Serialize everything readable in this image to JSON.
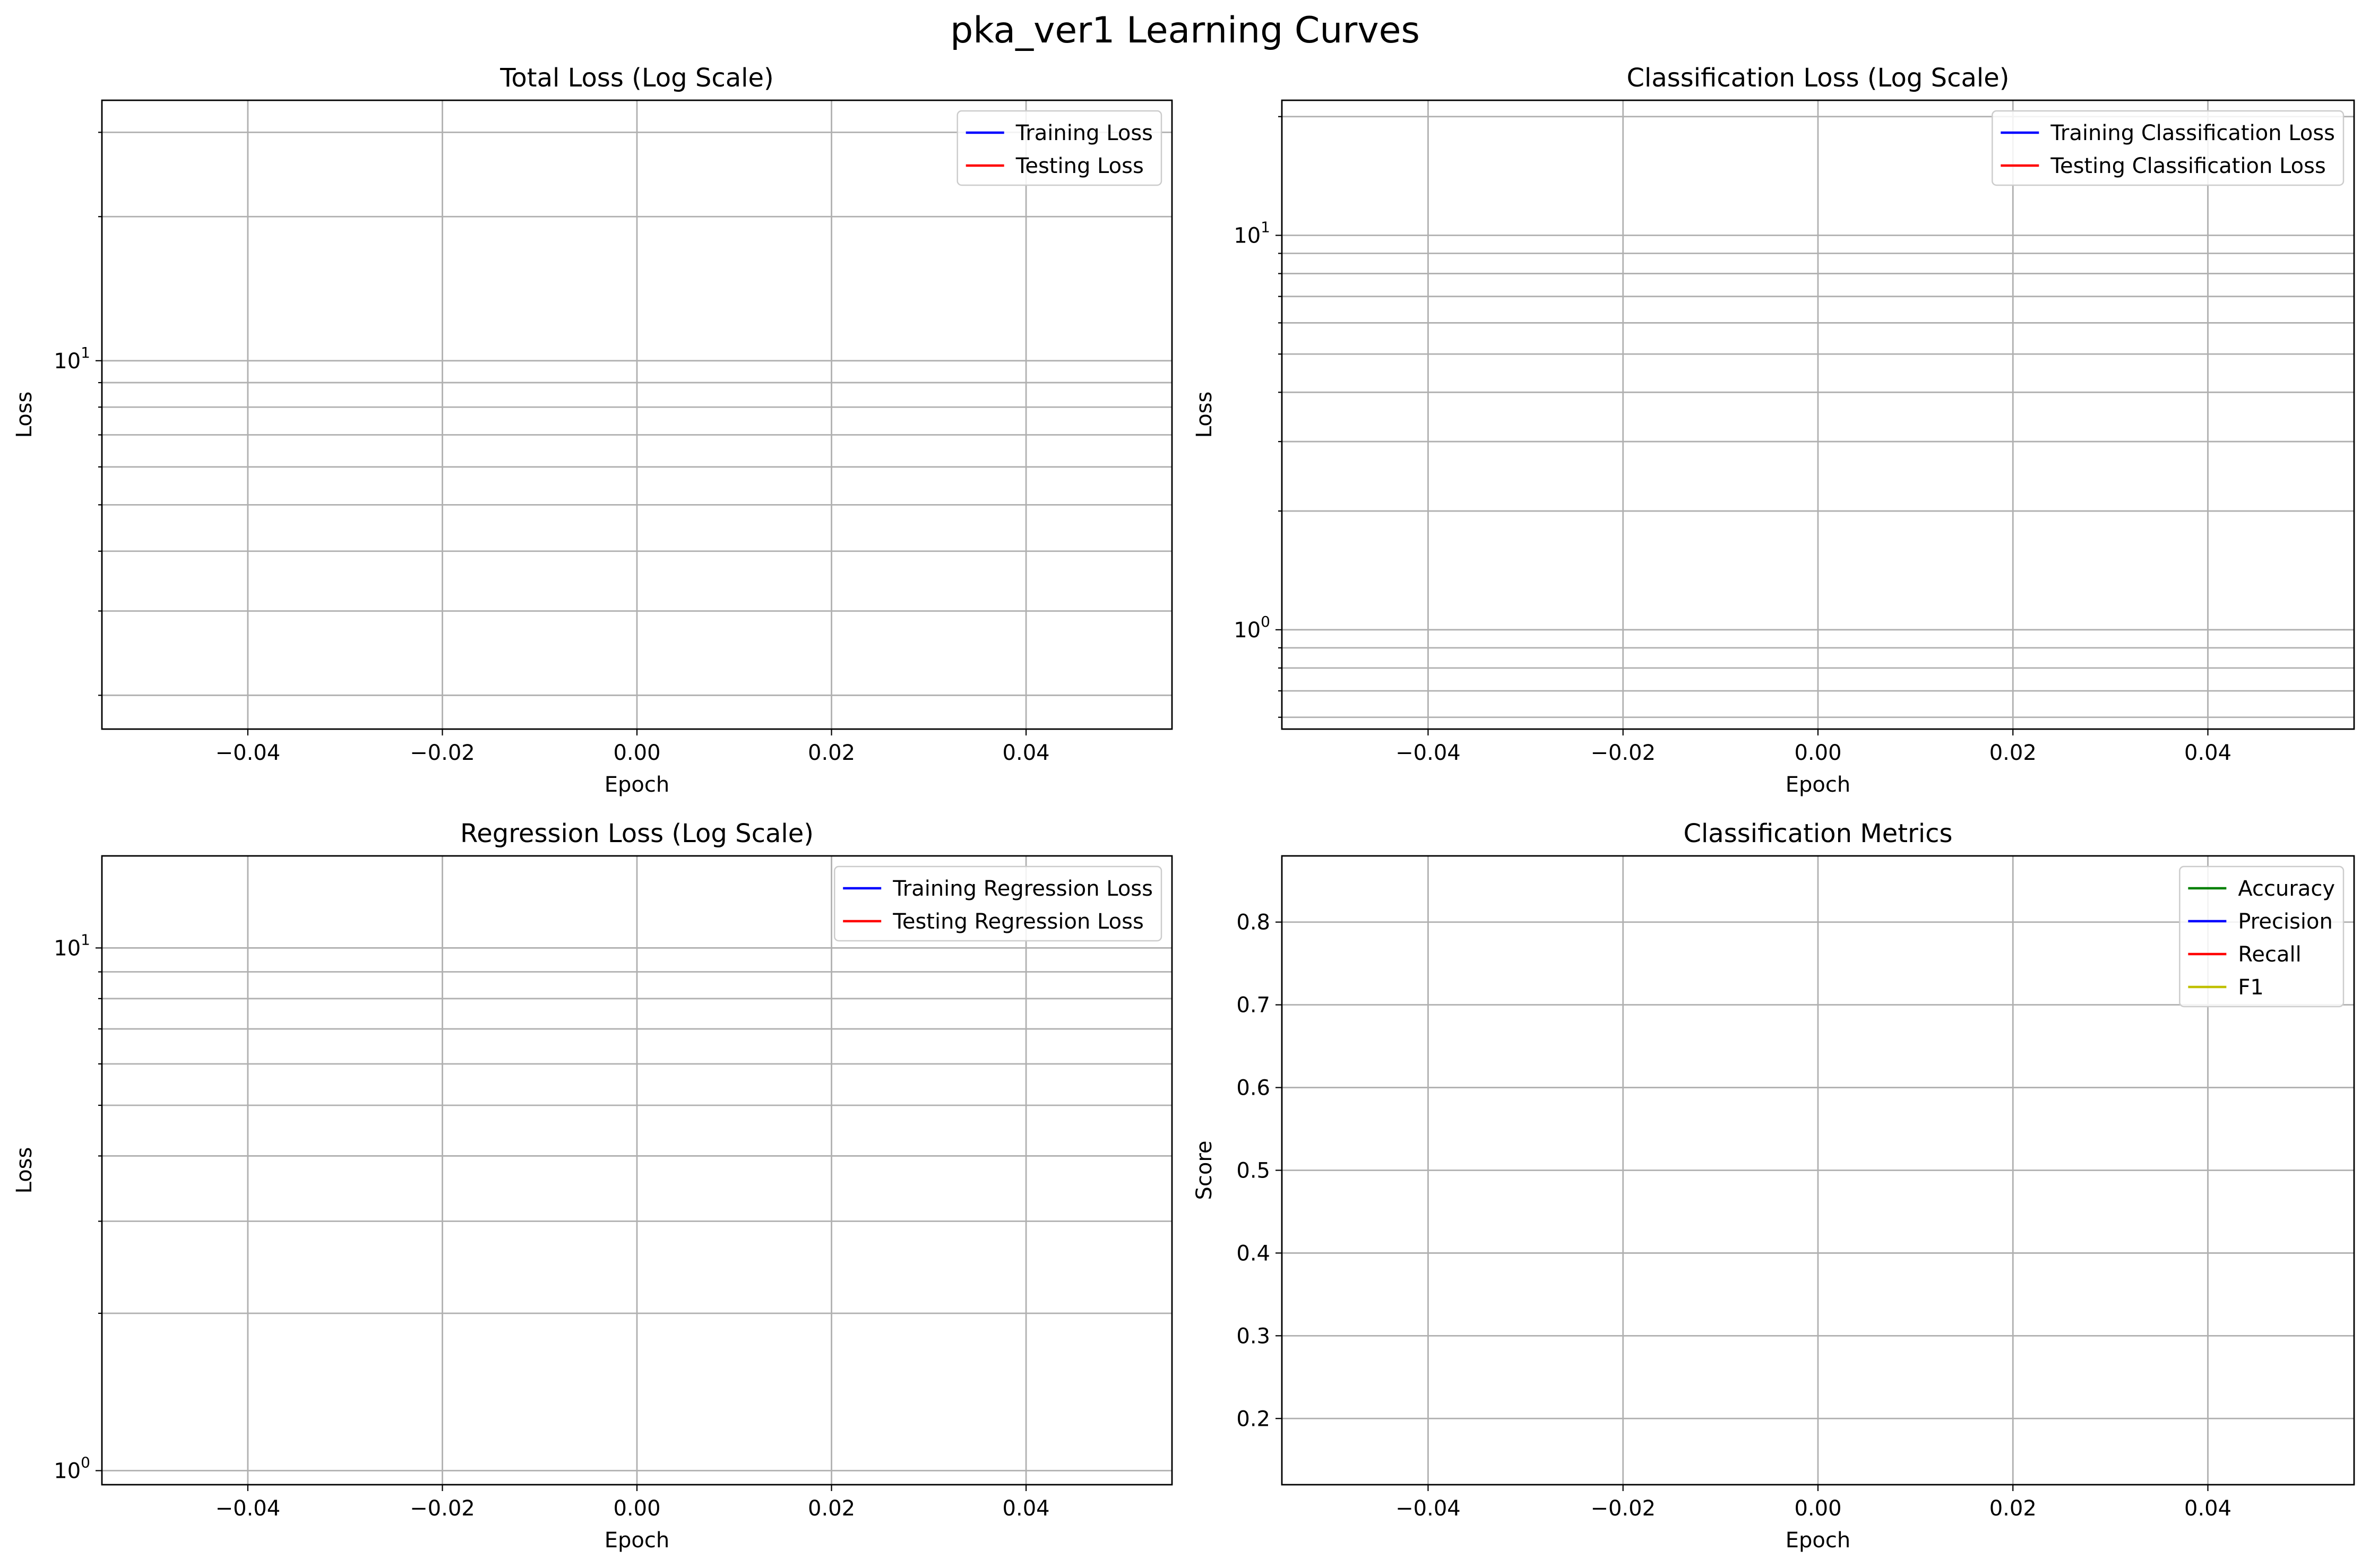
{
  "figure": {
    "suptitle": "pka_ver1 Learning Curves"
  },
  "chart_data": [
    {
      "type": "line",
      "title": "Total Loss (Log Scale)",
      "xlabel": "Epoch",
      "ylabel": "Loss",
      "xscale": "linear",
      "yscale": "log",
      "xlim": [
        -0.055,
        0.055
      ],
      "ylim": [
        1.7,
        35
      ],
      "xticks": [
        -0.04,
        -0.02,
        0.0,
        0.02,
        0.04
      ],
      "xtick_labels": [
        "−0.04",
        "−0.02",
        "0.00",
        "0.02",
        "0.04"
      ],
      "yticks_major": [
        {
          "value": 10,
          "base": "10",
          "exp": "1"
        }
      ],
      "yticks_minor": [
        2,
        3,
        4,
        5,
        6,
        7,
        8,
        9,
        20,
        30
      ],
      "grid": true,
      "grid_minor_y": true,
      "legend_position": "top-right",
      "series": [
        {
          "name": "Training Loss",
          "color": "#0000ff",
          "x": [],
          "y": []
        },
        {
          "name": "Testing Loss",
          "color": "#ff0000",
          "x": [],
          "y": []
        }
      ]
    },
    {
      "type": "line",
      "title": "Classification Loss (Log Scale)",
      "xlabel": "Epoch",
      "ylabel": "Loss",
      "xscale": "linear",
      "yscale": "log",
      "xlim": [
        -0.055,
        0.055
      ],
      "ylim": [
        0.56,
        22
      ],
      "xticks": [
        -0.04,
        -0.02,
        0.0,
        0.02,
        0.04
      ],
      "xtick_labels": [
        "−0.04",
        "−0.02",
        "0.00",
        "0.02",
        "0.04"
      ],
      "yticks_major": [
        {
          "value": 1,
          "base": "10",
          "exp": "0"
        },
        {
          "value": 10,
          "base": "10",
          "exp": "1"
        }
      ],
      "yticks_minor": [
        0.6,
        0.7,
        0.8,
        0.9,
        2,
        3,
        4,
        5,
        6,
        7,
        8,
        9,
        20
      ],
      "grid": true,
      "grid_minor_y": true,
      "legend_position": "top-right",
      "series": [
        {
          "name": "Training Classification Loss",
          "color": "#0000ff",
          "x": [],
          "y": []
        },
        {
          "name": "Testing Classification Loss",
          "color": "#ff0000",
          "x": [],
          "y": []
        }
      ]
    },
    {
      "type": "line",
      "title": "Regression Loss (Log Scale)",
      "xlabel": "Epoch",
      "ylabel": "Loss",
      "xscale": "linear",
      "yscale": "log",
      "xlim": [
        -0.055,
        0.055
      ],
      "ylim": [
        0.94,
        15
      ],
      "xticks": [
        -0.04,
        -0.02,
        0.0,
        0.02,
        0.04
      ],
      "xtick_labels": [
        "−0.04",
        "−0.02",
        "0.00",
        "0.02",
        "0.04"
      ],
      "yticks_major": [
        {
          "value": 1,
          "base": "10",
          "exp": "0"
        },
        {
          "value": 10,
          "base": "10",
          "exp": "1"
        }
      ],
      "yticks_minor": [
        2,
        3,
        4,
        5,
        6,
        7,
        8,
        9
      ],
      "grid": true,
      "grid_minor_y": true,
      "legend_position": "top-right",
      "series": [
        {
          "name": "Training Regression Loss",
          "color": "#0000ff",
          "x": [],
          "y": []
        },
        {
          "name": "Testing Regression Loss",
          "color": "#ff0000",
          "x": [],
          "y": []
        }
      ]
    },
    {
      "type": "line",
      "title": "Classification Metrics",
      "xlabel": "Epoch",
      "ylabel": "Score",
      "xscale": "linear",
      "yscale": "linear",
      "xlim": [
        -0.055,
        0.055
      ],
      "ylim": [
        0.12,
        0.88
      ],
      "xticks": [
        -0.04,
        -0.02,
        0.0,
        0.02,
        0.04
      ],
      "xtick_labels": [
        "−0.04",
        "−0.02",
        "0.00",
        "0.02",
        "0.04"
      ],
      "yticks": [
        0.2,
        0.3,
        0.4,
        0.5,
        0.6,
        0.7,
        0.8
      ],
      "ytick_labels": [
        "0.2",
        "0.3",
        "0.4",
        "0.5",
        "0.6",
        "0.7",
        "0.8"
      ],
      "grid": true,
      "legend_position": "top-right",
      "series": [
        {
          "name": "Accuracy",
          "color": "#008000",
          "x": [],
          "y": []
        },
        {
          "name": "Precision",
          "color": "#0000ff",
          "x": [],
          "y": []
        },
        {
          "name": "Recall",
          "color": "#ff0000",
          "x": [],
          "y": []
        },
        {
          "name": "F1",
          "color": "#bfbf00",
          "x": [],
          "y": []
        }
      ]
    }
  ]
}
